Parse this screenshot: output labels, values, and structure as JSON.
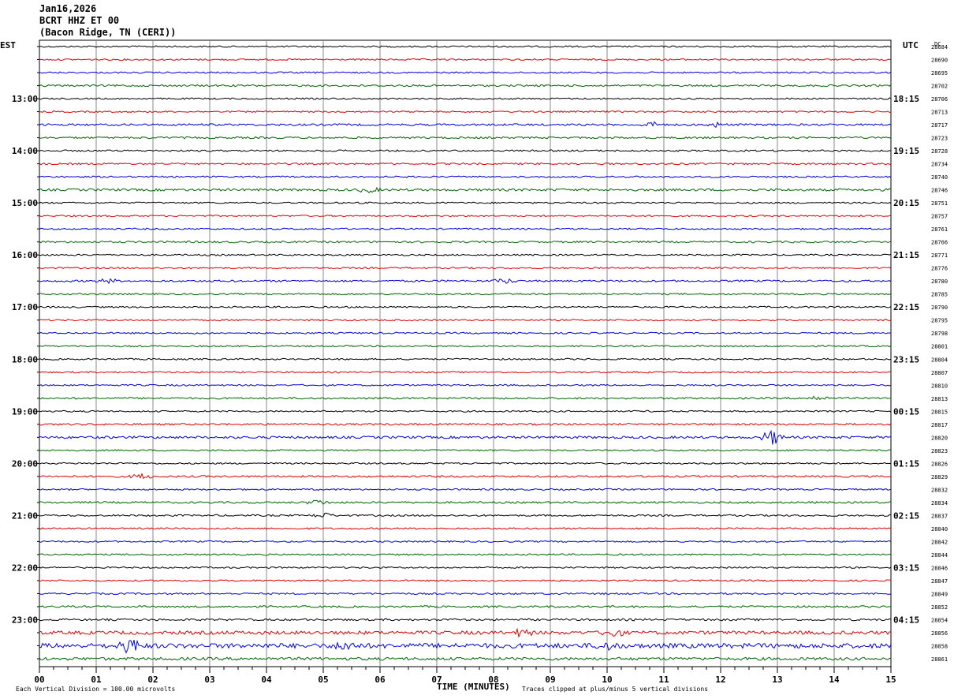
{
  "header": {
    "date": "Jan16,2026",
    "station": "BCRT HHZ ET 00",
    "location": "(Bacon Ridge, TN (CERI))"
  },
  "left_tz": "EST",
  "right_tz": "UTC",
  "dc_label": "DC",
  "footer": {
    "scale": "Each Vertical Division =  100.00 microvolts",
    "xlabel": "TIME (MINUTES)",
    "clip": "Traces clipped at plus/minus 5 vertical divisions"
  },
  "colors": {
    "cycle": [
      "#000000",
      "#e00000",
      "#0000e0",
      "#006400"
    ],
    "grid": "#888888"
  },
  "chart_data": {
    "type": "line",
    "title": "BCRT HHZ ET 00",
    "xlabel": "TIME (MINUTES)",
    "xlim": [
      0,
      15
    ],
    "x_ticks": [
      "00",
      "01",
      "02",
      "03",
      "04",
      "05",
      "06",
      "07",
      "08",
      "09",
      "10",
      "11",
      "12",
      "13",
      "14",
      "15"
    ],
    "rows_per_hour": 4,
    "left_hour_labels": [
      "13:00",
      "14:00",
      "15:00",
      "16:00",
      "17:00",
      "18:00",
      "19:00",
      "20:00",
      "21:00",
      "22:00",
      "23:00"
    ],
    "right_hour_labels": [
      "18:15",
      "19:15",
      "20:15",
      "21:15",
      "22:15",
      "23:15",
      "00:15",
      "01:15",
      "02:15",
      "03:15",
      "04:15"
    ],
    "hour_label_first_row": 4,
    "dc_offsets": [
      28684,
      28690,
      28695,
      28702,
      28706,
      28713,
      28717,
      28723,
      28728,
      28734,
      28740,
      28746,
      28751,
      28757,
      28761,
      28766,
      28771,
      28776,
      28780,
      28785,
      28790,
      28795,
      28798,
      28801,
      28804,
      28807,
      28810,
      28813,
      28815,
      28817,
      28820,
      28823,
      28826,
      28829,
      28832,
      28834,
      28837,
      28840,
      28842,
      28844,
      28846,
      28847,
      28849,
      28852,
      28854,
      28856,
      28858,
      28861
    ],
    "noise_level": [
      1,
      1,
      1,
      1.2,
      1,
      1,
      1.3,
      1.2,
      1.1,
      1.1,
      1,
      1.5,
      1,
      1,
      1,
      1.2,
      1,
      1,
      1.2,
      1,
      1,
      1,
      1,
      1,
      1,
      1,
      1,
      1.1,
      1,
      1.2,
      1.5,
      1,
      1,
      1.2,
      1,
      1.2,
      1.1,
      1,
      1,
      1,
      1,
      1,
      1.1,
      1.2,
      1.3,
      2.2,
      3,
      1.8
    ],
    "events": [
      {
        "row": 6,
        "minute": 10.8,
        "amp": 3
      },
      {
        "row": 6,
        "minute": 11.9,
        "amp": 2.5
      },
      {
        "row": 11,
        "minute": 5.8,
        "amp": 3
      },
      {
        "row": 18,
        "minute": 8.2,
        "amp": 3
      },
      {
        "row": 18,
        "minute": 1.2,
        "amp": 2.5
      },
      {
        "row": 27,
        "minute": 13.7,
        "amp": 3
      },
      {
        "row": 30,
        "minute": 12.9,
        "amp": 9
      },
      {
        "row": 33,
        "minute": 1.8,
        "amp": 3
      },
      {
        "row": 35,
        "minute": 4.9,
        "amp": 3
      },
      {
        "row": 36,
        "minute": 5.0,
        "amp": 3
      },
      {
        "row": 45,
        "minute": 8.5,
        "amp": 4
      },
      {
        "row": 45,
        "minute": 10.1,
        "amp": 5
      },
      {
        "row": 46,
        "minute": 1.6,
        "amp": 9
      },
      {
        "row": 46,
        "minute": 5.4,
        "amp": 5
      },
      {
        "row": 46,
        "minute": 10.0,
        "amp": 4
      }
    ]
  }
}
